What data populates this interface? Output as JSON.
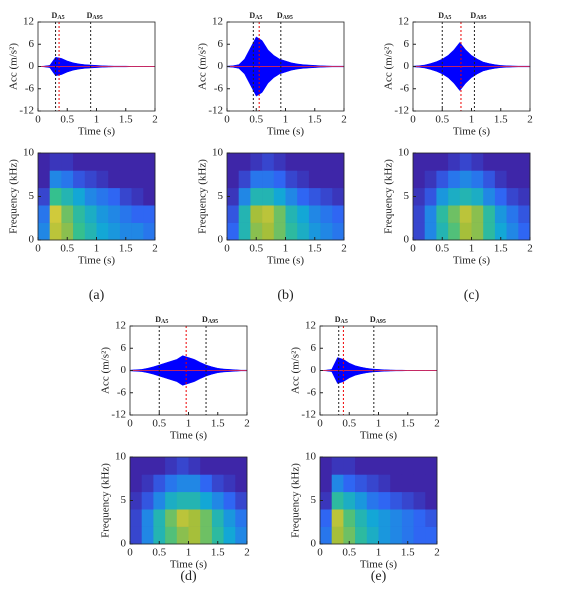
{
  "colormap": [
    "#3e26a8",
    "#2f66f3",
    "#13a7d6",
    "#35c08e",
    "#a6bf3a",
    "#f9d43b"
  ],
  "waveform_axes": {
    "xlabel": "Time (s)",
    "ylabel": "Acc (m/s²)",
    "xlim": [
      0,
      2
    ],
    "ylim": [
      -12,
      12
    ],
    "xticks": [
      0,
      0.5,
      1,
      1.5,
      2
    ],
    "yticks": [
      -12,
      -6,
      0,
      6,
      12
    ],
    "t": [
      0,
      0.1,
      0.2,
      0.3,
      0.4,
      0.5,
      0.6,
      0.7,
      0.8,
      0.9,
      1,
      1.1,
      1.2,
      1.3,
      1.4,
      1.5,
      1.6,
      1.7,
      1.8,
      1.9,
      2
    ],
    "color": "#0000ff"
  },
  "spectrogram_axes": {
    "xlabel": "Time (s)",
    "ylabel": "Frequency (kHz)",
    "xlim": [
      0,
      2
    ],
    "ylim": [
      0,
      10
    ],
    "xticks": [
      0,
      0.5,
      1,
      1.5,
      2
    ],
    "yticks": [
      0,
      5,
      10
    ],
    "time_edges": [
      0,
      0.2,
      0.4,
      0.6,
      0.8,
      1,
      1.2,
      1.4,
      1.6,
      1.8,
      2
    ],
    "freq_edges": [
      0,
      2,
      4,
      6,
      8,
      10
    ]
  },
  "panels": [
    {
      "label": "(a)",
      "waveform": {
        "envelope": [
          0,
          0.1,
          0.3,
          2.5,
          2.2,
          1.5,
          1,
          0.7,
          0.5,
          0.4,
          0.3,
          0.2,
          0.15,
          0.1,
          0.1,
          0.1,
          0.05,
          0.05,
          0.05,
          0.05,
          0.05
        ],
        "markers": [
          {
            "symbol": "D",
            "subscript": "A5",
            "t": 0.3
          },
          {
            "symbol": "D",
            "subscript": "A95",
            "t": 0.9
          }
        ],
        "peak_t": 0.36
      },
      "spectrogram": {
        "intensity": [
          [
            0.3,
            0.85,
            0.75,
            0.6,
            0.5,
            0.4,
            0.35,
            0.3,
            0.3,
            0.25
          ],
          [
            0.25,
            0.9,
            0.7,
            0.55,
            0.45,
            0.35,
            0.3,
            0.25,
            0.2,
            0.2
          ],
          [
            0.1,
            0.6,
            0.5,
            0.4,
            0.3,
            0.25,
            0.2,
            0.1,
            0.05,
            0
          ],
          [
            0,
            0.3,
            0.25,
            0.15,
            0.1,
            0.05,
            0,
            0,
            0,
            0
          ],
          [
            0,
            0.05,
            0.05,
            0,
            0,
            0,
            0,
            0,
            0,
            0
          ]
        ]
      }
    },
    {
      "label": "(b)",
      "waveform": {
        "envelope": [
          0.1,
          0.2,
          0.5,
          2,
          5,
          8,
          7,
          4.5,
          3,
          2,
          1.5,
          1,
          0.7,
          0.5,
          0.4,
          0.3,
          0.2,
          0.15,
          0.1,
          0.1,
          0.1
        ],
        "markers": [
          {
            "symbol": "D",
            "subscript": "A5",
            "t": 0.45
          },
          {
            "symbol": "D",
            "subscript": "A95",
            "t": 0.92
          }
        ],
        "peak_t": 0.55
      },
      "spectrogram": {
        "intensity": [
          [
            0.2,
            0.5,
            0.75,
            0.8,
            0.7,
            0.55,
            0.45,
            0.35,
            0.3,
            0.25
          ],
          [
            0.15,
            0.5,
            0.8,
            0.85,
            0.7,
            0.5,
            0.4,
            0.3,
            0.25,
            0.2
          ],
          [
            0.05,
            0.3,
            0.5,
            0.5,
            0.4,
            0.3,
            0.2,
            0.15,
            0.1,
            0.05
          ],
          [
            0,
            0.1,
            0.25,
            0.25,
            0.2,
            0.1,
            0.05,
            0,
            0,
            0
          ],
          [
            0,
            0,
            0.05,
            0.1,
            0.05,
            0,
            0,
            0,
            0,
            0
          ]
        ]
      }
    },
    {
      "label": "(c)",
      "waveform": {
        "envelope": [
          0.1,
          0.2,
          0.4,
          0.8,
          1.3,
          2,
          3,
          4.5,
          6.5,
          4.5,
          3,
          2,
          1.2,
          0.8,
          0.5,
          0.3,
          0.2,
          0.15,
          0.1,
          0.1,
          0.1
        ],
        "markers": [
          {
            "symbol": "D",
            "subscript": "A5",
            "t": 0.5
          },
          {
            "symbol": "D",
            "subscript": "A95",
            "t": 1.05
          }
        ],
        "peak_t": 0.82
      },
      "spectrogram": {
        "intensity": [
          [
            0.1,
            0.3,
            0.5,
            0.65,
            0.8,
            0.75,
            0.55,
            0.4,
            0.3,
            0.2
          ],
          [
            0.1,
            0.3,
            0.55,
            0.7,
            0.85,
            0.75,
            0.55,
            0.35,
            0.25,
            0.15
          ],
          [
            0.05,
            0.15,
            0.35,
            0.45,
            0.5,
            0.45,
            0.3,
            0.2,
            0.1,
            0.05
          ],
          [
            0,
            0.05,
            0.15,
            0.25,
            0.3,
            0.25,
            0.15,
            0.05,
            0,
            0
          ],
          [
            0,
            0,
            0,
            0.05,
            0.1,
            0.05,
            0,
            0,
            0,
            0
          ]
        ]
      }
    },
    {
      "label": "(d)",
      "waveform": {
        "envelope": [
          0.1,
          0.2,
          0.3,
          0.6,
          1,
          1.5,
          2,
          2.5,
          3,
          4,
          3.5,
          3,
          2.2,
          1.5,
          1,
          0.6,
          0.4,
          0.3,
          0.2,
          0.1,
          0.1
        ],
        "markers": [
          {
            "symbol": "D",
            "subscript": "A5",
            "t": 0.5
          },
          {
            "symbol": "D",
            "subscript": "A95",
            "t": 1.3
          }
        ],
        "peak_t": 0.96
      },
      "spectrogram": {
        "intensity": [
          [
            0.1,
            0.3,
            0.5,
            0.65,
            0.75,
            0.8,
            0.7,
            0.55,
            0.4,
            0.3
          ],
          [
            0.1,
            0.3,
            0.5,
            0.7,
            0.85,
            0.8,
            0.7,
            0.5,
            0.35,
            0.25
          ],
          [
            0.05,
            0.15,
            0.3,
            0.45,
            0.5,
            0.5,
            0.4,
            0.3,
            0.2,
            0.1
          ],
          [
            0,
            0.05,
            0.15,
            0.25,
            0.3,
            0.3,
            0.2,
            0.1,
            0.05,
            0
          ],
          [
            0,
            0,
            0,
            0.05,
            0.1,
            0.05,
            0,
            0,
            0,
            0
          ]
        ]
      }
    },
    {
      "label": "(e)",
      "waveform": {
        "envelope": [
          0,
          0.1,
          0.3,
          3.5,
          3,
          2,
          1.3,
          0.9,
          0.6,
          0.4,
          0.3,
          0.2,
          0.15,
          0.1,
          0.1,
          0.05,
          0.05,
          0.05,
          0.05,
          0.05,
          0.05
        ],
        "markers": [
          {
            "symbol": "D",
            "subscript": "A5",
            "t": 0.32
          },
          {
            "symbol": "D",
            "subscript": "A95",
            "t": 0.92
          }
        ],
        "peak_t": 0.4
      },
      "spectrogram": {
        "intensity": [
          [
            0.25,
            0.8,
            0.7,
            0.55,
            0.45,
            0.35,
            0.3,
            0.25,
            0.2,
            0.2
          ],
          [
            0.2,
            0.85,
            0.65,
            0.5,
            0.4,
            0.35,
            0.3,
            0.25,
            0.2,
            0.15
          ],
          [
            0.05,
            0.55,
            0.45,
            0.35,
            0.25,
            0.2,
            0.15,
            0.1,
            0.05,
            0
          ],
          [
            0,
            0.3,
            0.2,
            0.15,
            0.1,
            0.05,
            0,
            0,
            0,
            0
          ],
          [
            0,
            0.05,
            0.05,
            0,
            0,
            0,
            0,
            0,
            0,
            0
          ]
        ]
      }
    }
  ]
}
